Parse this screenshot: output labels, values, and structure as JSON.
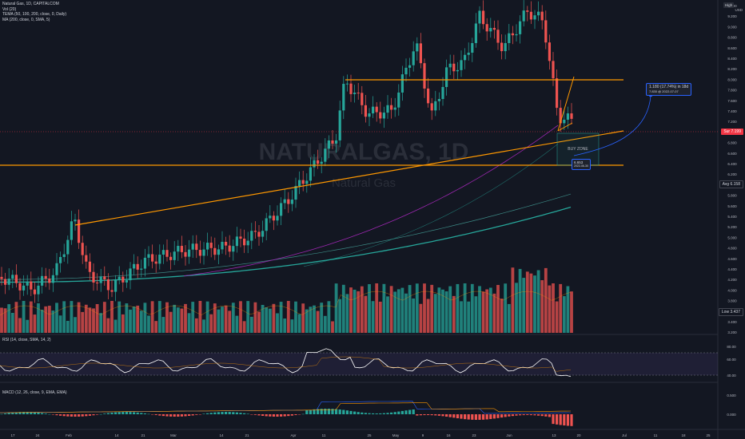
{
  "legend": {
    "symbol": "Natural Gas, 1D, CAPITALCOM",
    "vol": "Vol (20)",
    "tema": "TEMA (50, 100, 200, close, 0, Daily)",
    "ma": "MA (200, close, 0, SMA, 5)"
  },
  "watermark": {
    "main": "NATURALGAS, 1D",
    "sub": "Natural Gas"
  },
  "toolbar": {
    "high_label": "High",
    "currency": "USD"
  },
  "price_axis": [
    "9.400",
    "9.200",
    "9.000",
    "8.800",
    "8.600",
    "8.400",
    "8.200",
    "8.000",
    "7.800",
    "7.600",
    "7.400",
    "7.200",
    "7.000",
    "6.800",
    "6.600",
    "6.400",
    "6.200",
    "6.000",
    "5.800",
    "5.600",
    "5.400",
    "5.200",
    "5.000",
    "4.800",
    "4.600",
    "4.400",
    "4.200",
    "4.000",
    "3.800",
    "3.600",
    "3.400",
    "3.200"
  ],
  "tags": {
    "price": {
      "label": "Sur",
      "value": "7.199",
      "color": "#f23645"
    },
    "avg": {
      "label": "Avg",
      "value": "6.158",
      "color": "#131722"
    },
    "low": {
      "label": "Low",
      "value": "3.437",
      "color": "#131722"
    }
  },
  "annotations": {
    "target_line1": "1.180 (17.74%) in 18d",
    "target_line2": "7.830 @ 2022-07-07",
    "buy_zone": "BUY ZONE",
    "bz_value": "6.653",
    "bz_date": "2022-06-30"
  },
  "rsi": {
    "legend": "RSI (14, close, SMA, 14, 2)",
    "axis": [
      "80.00",
      "60.00",
      "40.00"
    ]
  },
  "macd": {
    "legend": "MACD (12, 26, close, 9, EMA, EMA)",
    "axis": [
      "0.500",
      "0.000"
    ]
  },
  "time_axis": [
    "17",
    "24",
    "Feb",
    "14",
    "21",
    "Mar",
    "14",
    "21",
    "Apr",
    "11",
    "25",
    "May",
    "9",
    "16",
    "23",
    "Jun",
    "13",
    "20",
    "Jul",
    "11",
    "18",
    "25"
  ],
  "colors": {
    "up": "#26a69a",
    "down": "#ef5350",
    "orange": "#ff9800",
    "ma": "#9c27b0"
  }
}
